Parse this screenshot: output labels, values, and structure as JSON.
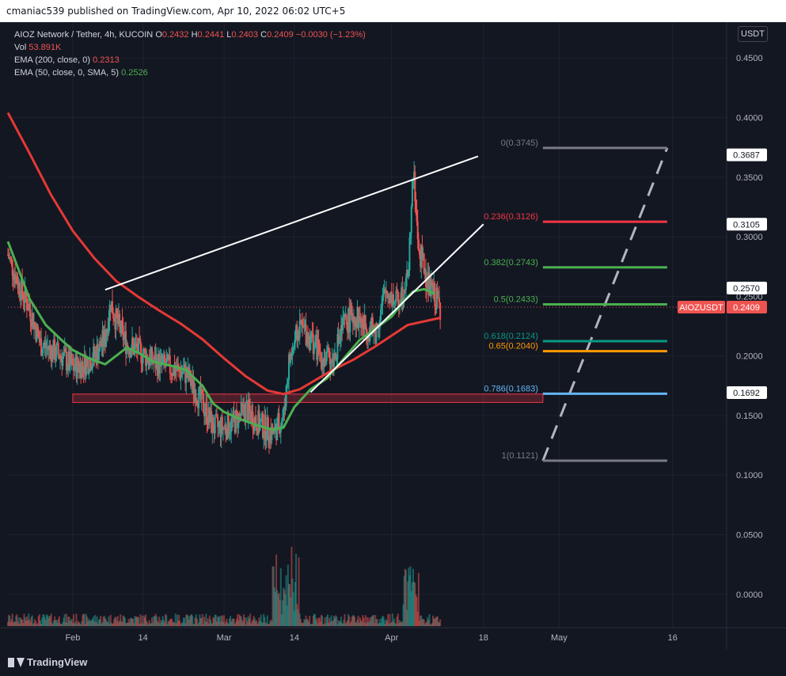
{
  "header": {
    "publish_text": "cmaniac539 published on TradingView.com, Apr 10, 2022 06:02 UTC+5"
  },
  "legend": {
    "symbol": "AIOZ Network / Tether, 4h, KUCOIN",
    "ohlc": {
      "o_label": "O",
      "o": "0.2432",
      "h_label": "H",
      "h": "0.2441",
      "l_label": "L",
      "l": "0.2403",
      "c_label": "C",
      "c": "0.2409",
      "change": "−0.0030 (−1.23%)"
    },
    "vol_label": "Vol",
    "vol_value": "53.891K",
    "ema200_label": "EMA (200, close, 0)",
    "ema200_value": "0.2313",
    "ema50_label": "EMA (50, close, 0, SMA, 5)",
    "ema50_value": "0.2526"
  },
  "currency_button": "USDT",
  "footer": {
    "logo_text": "TradingView"
  },
  "colors": {
    "background": "#131722",
    "up": "#26a69a",
    "down": "#ef5350",
    "ema200": "#e53935",
    "ema50": "#4caf50",
    "trendline": "#ffffff",
    "fib_0": "#787b86",
    "fib_236": "#f23645",
    "fib_382": "#4caf50",
    "fib_5": "#4caf50",
    "fib_618": "#089981",
    "fib_65": "#ff9800",
    "fib_786": "#64b5f6",
    "fib_1": "#787b86"
  },
  "chart_data": {
    "type": "candlestick",
    "symbol_tag": "AIOZUSDT",
    "last_price": "0.2409",
    "y_ticks": [
      "0.4500",
      "0.4000",
      "0.3500",
      "0.3000",
      "0.2500",
      "0.2000",
      "0.1500",
      "0.1000",
      "0.0500",
      "0.0000"
    ],
    "y_tick_values": [
      0.45,
      0.4,
      0.35,
      0.3,
      0.25,
      0.2,
      0.15,
      0.1,
      0.05,
      0.0
    ],
    "ylim": [
      -0.028,
      0.48
    ],
    "x_ticks": [
      "Feb",
      "14",
      "Mar",
      "14",
      "Apr",
      "18",
      "May",
      "16"
    ],
    "x_tick_days": [
      0,
      13,
      28,
      41,
      59,
      76,
      90,
      111
    ],
    "x_range_days": [
      -12,
      121
    ],
    "price_labels": [
      {
        "text": "0.3687",
        "value": 0.3687
      },
      {
        "text": "0.3105",
        "value": 0.3105
      },
      {
        "text": "0.2570",
        "value": 0.257
      },
      {
        "text": "0.1692",
        "value": 0.1692
      }
    ],
    "fibonacci": [
      {
        "label": "0(0.3745)",
        "value": 0.3745,
        "color_key": "fib_0"
      },
      {
        "label": "0.236(0.3126)",
        "value": 0.3126,
        "color_key": "fib_236"
      },
      {
        "label": "0.382(0.2743)",
        "value": 0.2743,
        "color_key": "fib_382"
      },
      {
        "label": "0.5(0.2433)",
        "value": 0.2433,
        "color_key": "fib_5"
      },
      {
        "label": "0.618(0.2124)",
        "value": 0.2124,
        "color_key": "fib_618"
      },
      {
        "label": "0.65(0.2040)",
        "value": 0.204,
        "color_key": "fib_65"
      },
      {
        "label": "0.786(0.1683)",
        "value": 0.1683,
        "color_key": "fib_786"
      },
      {
        "label": "1(0.1121)",
        "value": 0.1121,
        "color_key": "fib_1"
      }
    ],
    "fib_x_start_day": 87,
    "fib_x_end_day": 110,
    "ema200": [
      [
        -12,
        0.404
      ],
      [
        -8,
        0.37
      ],
      [
        -4,
        0.335
      ],
      [
        0,
        0.305
      ],
      [
        4,
        0.282
      ],
      [
        8,
        0.263
      ],
      [
        12,
        0.25
      ],
      [
        16,
        0.238
      ],
      [
        20,
        0.227
      ],
      [
        24,
        0.214
      ],
      [
        28,
        0.198
      ],
      [
        32,
        0.183
      ],
      [
        36,
        0.171
      ],
      [
        39,
        0.168
      ],
      [
        42,
        0.172
      ],
      [
        45,
        0.18
      ],
      [
        48,
        0.188
      ],
      [
        52,
        0.197
      ],
      [
        56,
        0.208
      ],
      [
        60,
        0.22
      ],
      [
        62,
        0.226
      ],
      [
        65,
        0.229
      ],
      [
        68,
        0.232
      ]
    ],
    "ema50": [
      [
        -12,
        0.296
      ],
      [
        -10,
        0.272
      ],
      [
        -8,
        0.248
      ],
      [
        -5,
        0.226
      ],
      [
        -2,
        0.213
      ],
      [
        0,
        0.205
      ],
      [
        3,
        0.198
      ],
      [
        6,
        0.193
      ],
      [
        8,
        0.2
      ],
      [
        10,
        0.207
      ],
      [
        12,
        0.203
      ],
      [
        15,
        0.195
      ],
      [
        18,
        0.192
      ],
      [
        21,
        0.188
      ],
      [
        24,
        0.175
      ],
      [
        26,
        0.16
      ],
      [
        28,
        0.153
      ],
      [
        31,
        0.147
      ],
      [
        34,
        0.142
      ],
      [
        37,
        0.138
      ],
      [
        39,
        0.14
      ],
      [
        41,
        0.157
      ],
      [
        44,
        0.172
      ],
      [
        47,
        0.181
      ],
      [
        50,
        0.197
      ],
      [
        53,
        0.213
      ],
      [
        56,
        0.223
      ],
      [
        59,
        0.233
      ],
      [
        61,
        0.245
      ],
      [
        63,
        0.254
      ],
      [
        65,
        0.256
      ],
      [
        67,
        0.252
      ]
    ],
    "close_path": [
      [
        -12,
        0.285
      ],
      [
        -10,
        0.26
      ],
      [
        -8,
        0.24
      ],
      [
        -6,
        0.21
      ],
      [
        -4,
        0.205
      ],
      [
        -2,
        0.2
      ],
      [
        0,
        0.19
      ],
      [
        2,
        0.193
      ],
      [
        4,
        0.2
      ],
      [
        6,
        0.215
      ],
      [
        7,
        0.245
      ],
      [
        8,
        0.23
      ],
      [
        10,
        0.21
      ],
      [
        12,
        0.205
      ],
      [
        15,
        0.195
      ],
      [
        18,
        0.19
      ],
      [
        21,
        0.185
      ],
      [
        24,
        0.16
      ],
      [
        26,
        0.14
      ],
      [
        28,
        0.14
      ],
      [
        30,
        0.145
      ],
      [
        32,
        0.155
      ],
      [
        34,
        0.145
      ],
      [
        37,
        0.135
      ],
      [
        39,
        0.15
      ],
      [
        40,
        0.195
      ],
      [
        42,
        0.225
      ],
      [
        44,
        0.215
      ],
      [
        46,
        0.2
      ],
      [
        48,
        0.195
      ],
      [
        50,
        0.225
      ],
      [
        52,
        0.235
      ],
      [
        54,
        0.225
      ],
      [
        56,
        0.22
      ],
      [
        58,
        0.255
      ],
      [
        60,
        0.245
      ],
      [
        62,
        0.265
      ],
      [
        63,
        0.355
      ],
      [
        64,
        0.29
      ],
      [
        65,
        0.275
      ],
      [
        66,
        0.255
      ],
      [
        67,
        0.25
      ],
      [
        68,
        0.2409
      ]
    ],
    "trendlines": [
      {
        "from": [
          6,
          0.2555
        ],
        "to": [
          75,
          0.3675
        ]
      },
      {
        "from": [
          44,
          0.1695
        ],
        "to": [
          76,
          0.3105
        ]
      }
    ],
    "projection": {
      "from": [
        87,
        0.1121
      ],
      "to": [
        110,
        0.3745
      ]
    },
    "support_zone": {
      "from_day": 0,
      "to_day": 87,
      "top": 0.168,
      "bottom": 0.161
    },
    "current_price_line": 0.2409
  }
}
